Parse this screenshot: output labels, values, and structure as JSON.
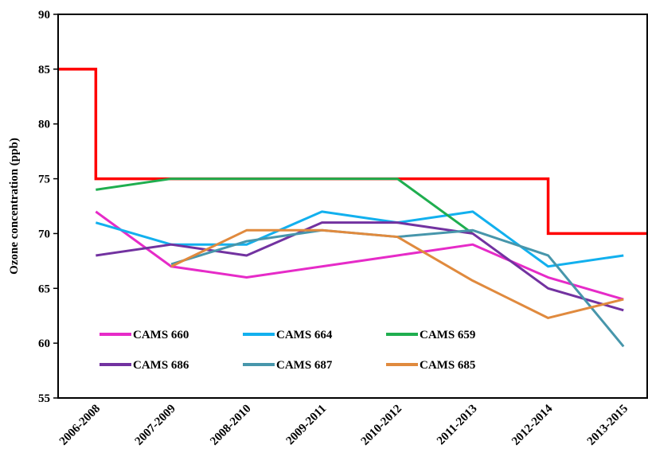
{
  "chart_data": {
    "type": "line",
    "y_label": "Ozone concentration (ppb)",
    "categories": [
      "2006-2008",
      "2007-2009",
      "2008-2010",
      "2009-2011",
      "2010-2012",
      "2011-2013",
      "2012-2014",
      "2013-2015"
    ],
    "ylim": [
      55,
      90
    ],
    "yticks": [
      55,
      60,
      65,
      70,
      75,
      80,
      85,
      90
    ],
    "standard": {
      "color": "#ff0000",
      "values": [
        85,
        75,
        75,
        75,
        75,
        75,
        75,
        70
      ]
    },
    "series": [
      {
        "name": "CAMS 660",
        "color": "#e62bc8",
        "values": [
          72,
          67,
          66,
          67,
          68,
          69,
          66,
          64
        ]
      },
      {
        "name": "CAMS 664",
        "color": "#12b0ee",
        "values": [
          71,
          69,
          69,
          72,
          71,
          72,
          67,
          68
        ]
      },
      {
        "name": "CAMS 659",
        "color": "#1fae4f",
        "values": [
          74,
          75,
          75,
          75,
          75,
          70,
          null,
          null
        ]
      },
      {
        "name": "CAMS 686",
        "color": "#7232a0",
        "values": [
          68,
          69,
          68,
          71,
          71,
          70,
          65,
          63
        ]
      },
      {
        "name": "CAMS 687",
        "color": "#4796ab",
        "values": [
          null,
          67.2,
          69.3,
          70.3,
          69.7,
          70.3,
          68,
          59.7
        ]
      },
      {
        "name": "CAMS 685",
        "color": "#e08a3e",
        "values": [
          null,
          67,
          70.3,
          70.3,
          69.7,
          65.7,
          62.3,
          64
        ]
      }
    ]
  }
}
